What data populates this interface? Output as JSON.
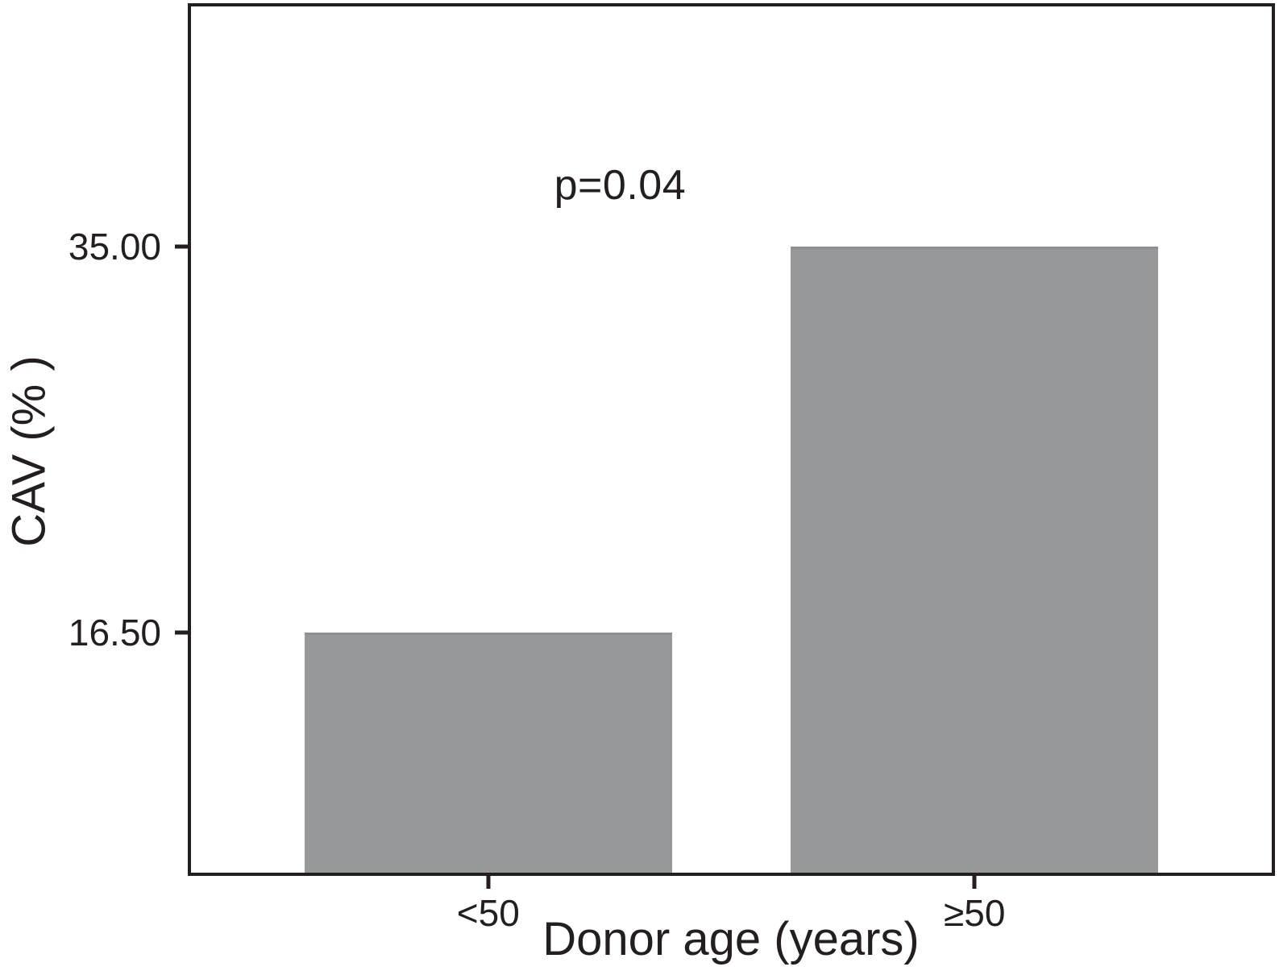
{
  "chart_data": {
    "type": "bar",
    "title": "",
    "xlabel": "Donor age (years)",
    "ylabel": "CAV (% )",
    "categories": [
      "<50",
      "≥50"
    ],
    "values": [
      16.5,
      35.0
    ],
    "value_labels": [
      "16.50",
      "35.00"
    ],
    "yticks": [
      {
        "value": 16.5,
        "label": "16.50"
      },
      {
        "value": 35.0,
        "label": "35.00"
      }
    ],
    "ylim": [
      5,
      46.5
    ],
    "annotation": "p=0.04",
    "grid": false,
    "legend_position": "none",
    "bar_color": "#97989a",
    "axis_color": "#231f20",
    "background_color": "#ffffff"
  }
}
